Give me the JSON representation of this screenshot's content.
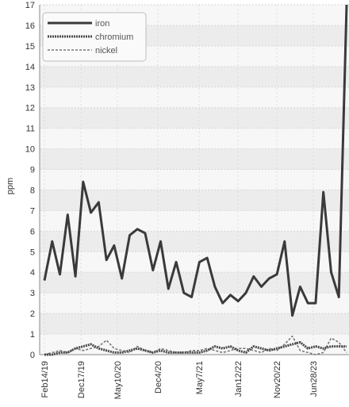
{
  "chart_data": {
    "type": "line",
    "ylabel": "ppm",
    "xlabel": "",
    "ylim": [
      0,
      17
    ],
    "y_ticks": [
      0,
      1,
      2,
      3,
      4,
      5,
      6,
      7,
      8,
      9,
      10,
      11,
      12,
      13,
      14,
      15,
      16,
      17
    ],
    "x_tick_labels": [
      "Feb14/19",
      "Dec17/19",
      "May10/20",
      "Dec4/20",
      "May7/21",
      "Jan12/22",
      "Nov20/22",
      "Jun28/23"
    ],
    "grid": true,
    "legend_placement": "top-left",
    "series": [
      {
        "name": "iron",
        "color": "#3a3a3a",
        "style": "solid",
        "values": [
          3.6,
          5.5,
          3.9,
          6.8,
          3.8,
          8.4,
          6.9,
          7.4,
          4.6,
          5.3,
          3.7,
          5.8,
          6.1,
          5.9,
          4.1,
          5.5,
          3.2,
          4.5,
          3.0,
          2.8,
          4.5,
          4.7,
          3.3,
          2.5,
          2.9,
          2.6,
          3.0,
          3.8,
          3.3,
          3.7,
          3.9,
          5.5,
          1.9,
          3.3,
          2.5,
          2.5,
          7.9,
          4.0,
          2.8,
          17
        ]
      },
      {
        "name": "chromium",
        "color": "#4a4a4a",
        "style": "dotted",
        "values": [
          0.0,
          0.0,
          0.1,
          0.1,
          0.3,
          0.4,
          0.5,
          0.3,
          0.2,
          0.1,
          0.1,
          0.2,
          0.3,
          0.2,
          0.1,
          0.2,
          0.1,
          0.1,
          0.1,
          0.1,
          0.1,
          0.2,
          0.4,
          0.3,
          0.4,
          0.2,
          0.1,
          0.4,
          0.3,
          0.2,
          0.3,
          0.4,
          0.5,
          0.6,
          0.3,
          0.4,
          0.3,
          0.4,
          0.4,
          0.4
        ]
      },
      {
        "name": "nickel",
        "color": "#777777",
        "style": "dashed",
        "values": [
          0.0,
          0.1,
          0.2,
          0.1,
          0.3,
          0.2,
          0.3,
          0.4,
          0.7,
          0.3,
          0.2,
          0.1,
          0.4,
          0.2,
          0.1,
          0.3,
          0.2,
          0.1,
          0.1,
          0.2,
          0.2,
          0.3,
          0.2,
          0.1,
          0.2,
          0.3,
          0.3,
          0.2,
          0.1,
          0.3,
          0.2,
          0.5,
          0.9,
          0.2,
          0.1,
          0.0,
          0.1,
          0.8,
          0.6,
          0.1
        ]
      }
    ]
  }
}
